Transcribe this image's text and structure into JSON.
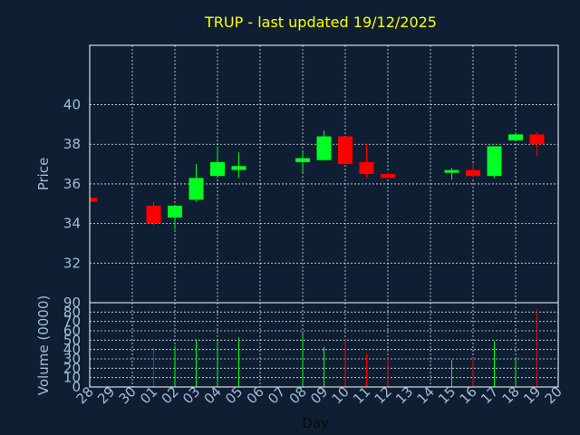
{
  "chart_data": {
    "type": "candlestick",
    "title": "TRUP - last updated 19/12/2025",
    "xlabel": "Day",
    "colors": {
      "background": "#0f1f33",
      "up": "#00ff22",
      "down": "#ff0000",
      "title": "#ffff00",
      "ticks": "#a6b8d8",
      "grid": "#ffffff"
    },
    "x_tick_labels": [
      "28",
      "29",
      "30",
      "01",
      "02",
      "03",
      "04",
      "05",
      "06",
      "07",
      "08",
      "09",
      "10",
      "11",
      "12",
      "13",
      "14",
      "15",
      "16",
      "17",
      "18",
      "19",
      "20"
    ],
    "price_panel": {
      "ylabel": "Price",
      "yticks": [
        32,
        34,
        36,
        38,
        40
      ],
      "ylim": [
        30,
        43
      ],
      "grid": true
    },
    "volume_panel": {
      "ylabel": "Volume (0000)",
      "yticks": [
        0,
        10,
        20,
        30,
        40,
        50,
        60,
        70,
        80,
        90
      ],
      "ylim": [
        0,
        90
      ],
      "grid": true
    },
    "candles": [
      {
        "day": "28",
        "open": 35.3,
        "high": 35.3,
        "low": 35.1,
        "close": 35.1,
        "volume": 0
      },
      {
        "day": "01",
        "open": 34.9,
        "high": 35.1,
        "low": 33.9,
        "close": 34.0,
        "volume": 42
      },
      {
        "day": "02",
        "open": 34.3,
        "high": 34.9,
        "low": 33.7,
        "close": 34.9,
        "volume": 44
      },
      {
        "day": "03",
        "open": 35.2,
        "high": 37.0,
        "low": 35.1,
        "close": 36.3,
        "volume": 51
      },
      {
        "day": "04",
        "open": 36.4,
        "high": 37.9,
        "low": 36.3,
        "close": 37.1,
        "volume": 49
      },
      {
        "day": "05",
        "open": 36.7,
        "high": 37.6,
        "low": 36.3,
        "close": 36.9,
        "volume": 53
      },
      {
        "day": "08",
        "open": 37.1,
        "high": 37.6,
        "low": 36.6,
        "close": 37.3,
        "volume": 57
      },
      {
        "day": "09",
        "open": 37.2,
        "high": 38.7,
        "low": 37.2,
        "close": 38.4,
        "volume": 43
      },
      {
        "day": "10",
        "open": 38.4,
        "high": 38.4,
        "low": 37.0,
        "close": 37.0,
        "volume": 51
      },
      {
        "day": "11",
        "open": 37.1,
        "high": 38.0,
        "low": 36.3,
        "close": 36.5,
        "volume": 36
      },
      {
        "day": "12",
        "open": 36.5,
        "high": 36.6,
        "low": 36.3,
        "close": 36.3,
        "volume": 31
      },
      {
        "day": "15",
        "open": 36.6,
        "high": 36.8,
        "low": 36.2,
        "close": 36.7,
        "volume": 29
      },
      {
        "day": "16",
        "open": 36.7,
        "high": 37.0,
        "low": 36.3,
        "close": 36.4,
        "volume": 31
      },
      {
        "day": "17",
        "open": 36.4,
        "high": 37.9,
        "low": 36.3,
        "close": 37.9,
        "volume": 49
      },
      {
        "day": "18",
        "open": 38.2,
        "high": 38.6,
        "low": 38.2,
        "close": 38.5,
        "volume": 31
      },
      {
        "day": "19",
        "open": 38.5,
        "high": 38.6,
        "low": 37.4,
        "close": 38.0,
        "volume": 83
      }
    ]
  }
}
